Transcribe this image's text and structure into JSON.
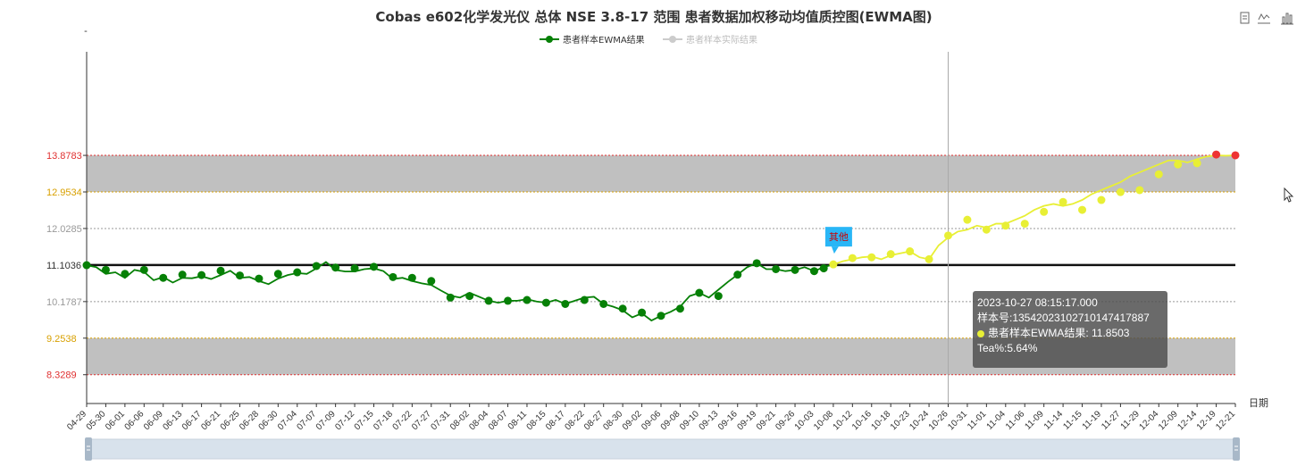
{
  "chart_data": {
    "type": "line",
    "title": "Cobas e602化学发光仪 总体 NSE 3.8-17 范围 患者数据加权移动均值质控图(EWMA图)",
    "legend": [
      {
        "name": "患者样本EWMA结果",
        "color": "#068006"
      },
      {
        "name": "患者样本实际结果",
        "color": "#cccccc"
      }
    ],
    "legend_position": "top-center",
    "xlabel": "日期",
    "ylim": [
      7.6,
      16.5
    ],
    "y_axis_top_label": "-",
    "y_ticks": [
      {
        "value": 13.8783,
        "label": "13.8783",
        "color": "#e03030"
      },
      {
        "value": 12.9534,
        "label": "12.9534",
        "color": "#d8a000"
      },
      {
        "value": 12.0285,
        "label": "12.0285",
        "color": "#999999"
      },
      {
        "value": 11.1036,
        "label": "11.1036",
        "color": "#333333"
      },
      {
        "value": 10.1787,
        "label": "10.1787",
        "color": "#999999"
      },
      {
        "value": 9.2538,
        "label": "9.2538",
        "color": "#d8a000"
      },
      {
        "value": 8.3289,
        "label": "8.3289",
        "color": "#e03030"
      }
    ],
    "mean_line": 11.1036,
    "bands": [
      {
        "from": 12.9534,
        "to": 13.8783,
        "color": "#c0c0c0"
      },
      {
        "from": 8.3289,
        "to": 9.2538,
        "color": "#c0c0c0"
      }
    ],
    "categories": [
      "04-29",
      "05-30",
      "06-01",
      "06-06",
      "06-09",
      "06-13",
      "06-17",
      "06-21",
      "06-25",
      "06-28",
      "06-30",
      "07-04",
      "07-07",
      "07-09",
      "07-12",
      "07-15",
      "07-18",
      "07-22",
      "07-27",
      "07-31",
      "08-02",
      "08-04",
      "08-07",
      "08-11",
      "08-15",
      "08-17",
      "08-22",
      "08-27",
      "08-30",
      "09-02",
      "09-06",
      "09-08",
      "09-10",
      "09-13",
      "09-16",
      "09-19",
      "09-21",
      "09-26",
      "10-03",
      "10-08",
      "10-12",
      "10-16",
      "10-18",
      "10-23",
      "10-24",
      "10-26",
      "10-31",
      "11-01",
      "11-04",
      "11-06",
      "11-09",
      "11-14",
      "11-15",
      "11-19",
      "11-27",
      "11-29",
      "12-04",
      "12-09",
      "12-14",
      "12-19",
      "12-21"
    ],
    "series": [
      {
        "name": "患者样本EWMA结果",
        "x": [
          0,
          0.5,
          1,
          1.5,
          2,
          2.5,
          3,
          3.5,
          4,
          4.5,
          5,
          5.5,
          6,
          6.5,
          7,
          7.5,
          8,
          8.5,
          9,
          9.5,
          10,
          10.5,
          11,
          11.5,
          12,
          12.5,
          13,
          13.5,
          14,
          14.5,
          15,
          15.5,
          16,
          16.5,
          17,
          17.5,
          18,
          18.5,
          19,
          19.5,
          20,
          20.5,
          21,
          21.5,
          22,
          22.5,
          23,
          23.5,
          24,
          24.5,
          25,
          25.5,
          26,
          26.5,
          27,
          27.5,
          28,
          28.5,
          29,
          29.5,
          30,
          30.5,
          31,
          31.5,
          32,
          32.5,
          33,
          33.5,
          34,
          34.5,
          35,
          35.5,
          36,
          36.5,
          37,
          37.5,
          38,
          38.5,
          39,
          39.5,
          40,
          40.5,
          41,
          41.5,
          42,
          42.5,
          43,
          43.5,
          44,
          44.5,
          45,
          45.5,
          46,
          46.5,
          47,
          47.5,
          48,
          48.5,
          49,
          49.5,
          50,
          50.5,
          51,
          51.5,
          52,
          52.5,
          53,
          53.5,
          54,
          54.5,
          55,
          55.5,
          56,
          56.5,
          57,
          57.5,
          58,
          58.5,
          59,
          59.5,
          60
        ],
        "values": [
          11.1,
          11.05,
          10.88,
          10.92,
          10.78,
          10.98,
          10.93,
          10.72,
          10.8,
          10.66,
          10.78,
          10.77,
          10.82,
          10.75,
          10.85,
          10.96,
          10.78,
          10.8,
          10.7,
          10.62,
          10.76,
          10.85,
          10.9,
          10.88,
          11.02,
          11.18,
          10.98,
          10.94,
          10.94,
          11.0,
          11.02,
          10.95,
          10.75,
          10.78,
          10.7,
          10.64,
          10.6,
          10.46,
          10.33,
          10.28,
          10.4,
          10.3,
          10.2,
          10.15,
          10.2,
          10.2,
          10.24,
          10.18,
          10.15,
          10.22,
          10.12,
          10.2,
          10.28,
          10.3,
          10.12,
          10.05,
          9.96,
          9.78,
          9.88,
          9.7,
          9.82,
          9.92,
          10.05,
          10.32,
          10.4,
          10.28,
          10.48,
          10.68,
          10.86,
          11.05,
          11.15,
          11.0,
          11.0,
          10.95,
          10.98,
          11.05,
          10.95,
          11.05,
          11.12,
          11.2,
          11.25,
          11.3,
          11.32,
          11.25,
          11.35,
          11.4,
          11.45,
          11.3,
          11.25,
          11.6,
          11.8,
          11.95,
          12.0,
          12.1,
          12.05,
          12.15,
          12.15,
          12.25,
          12.35,
          12.5,
          12.6,
          12.65,
          12.6,
          12.65,
          12.75,
          12.9,
          13.0,
          13.1,
          13.2,
          13.35,
          13.45,
          13.55,
          13.65,
          13.75,
          13.75,
          13.7,
          13.78,
          13.85,
          13.88,
          13.87,
          13.88
        ],
        "segment_colors": [
          {
            "from_x": 0,
            "to_x": 39,
            "color": "#068006"
          },
          {
            "from_x": 39,
            "to_x": 58.5,
            "color": "#e8ef35"
          },
          {
            "from_x": 58.5,
            "to_x": 60,
            "color": "#e8ef35"
          }
        ],
        "markers": [
          {
            "x": 0,
            "y": 11.1,
            "color": "#068006"
          },
          {
            "x": 1,
            "y": 10.98,
            "color": "#068006"
          },
          {
            "x": 2,
            "y": 10.88,
            "color": "#068006"
          },
          {
            "x": 3,
            "y": 10.98,
            "color": "#068006"
          },
          {
            "x": 4,
            "y": 10.78,
            "color": "#068006"
          },
          {
            "x": 5,
            "y": 10.86,
            "color": "#068006"
          },
          {
            "x": 6,
            "y": 10.85,
            "color": "#068006"
          },
          {
            "x": 7,
            "y": 10.96,
            "color": "#068006"
          },
          {
            "x": 8,
            "y": 10.84,
            "color": "#068006"
          },
          {
            "x": 9,
            "y": 10.76,
            "color": "#068006"
          },
          {
            "x": 10,
            "y": 10.88,
            "color": "#068006"
          },
          {
            "x": 11,
            "y": 10.92,
            "color": "#068006"
          },
          {
            "x": 12,
            "y": 11.08,
            "color": "#068006"
          },
          {
            "x": 13,
            "y": 11.04,
            "color": "#068006"
          },
          {
            "x": 14,
            "y": 11.02,
            "color": "#068006"
          },
          {
            "x": 15,
            "y": 11.06,
            "color": "#068006"
          },
          {
            "x": 16,
            "y": 10.8,
            "color": "#068006"
          },
          {
            "x": 17,
            "y": 10.78,
            "color": "#068006"
          },
          {
            "x": 18,
            "y": 10.7,
            "color": "#068006"
          },
          {
            "x": 19,
            "y": 10.28,
            "color": "#068006"
          },
          {
            "x": 20,
            "y": 10.32,
            "color": "#068006"
          },
          {
            "x": 21,
            "y": 10.2,
            "color": "#068006"
          },
          {
            "x": 22,
            "y": 10.2,
            "color": "#068006"
          },
          {
            "x": 23,
            "y": 10.22,
            "color": "#068006"
          },
          {
            "x": 24,
            "y": 10.15,
            "color": "#068006"
          },
          {
            "x": 25,
            "y": 10.12,
            "color": "#068006"
          },
          {
            "x": 26,
            "y": 10.22,
            "color": "#068006"
          },
          {
            "x": 27,
            "y": 10.12,
            "color": "#068006"
          },
          {
            "x": 28,
            "y": 10.0,
            "color": "#068006"
          },
          {
            "x": 29,
            "y": 9.9,
            "color": "#068006"
          },
          {
            "x": 30,
            "y": 9.82,
            "color": "#068006"
          },
          {
            "x": 31,
            "y": 10.0,
            "color": "#068006"
          },
          {
            "x": 32,
            "y": 10.4,
            "color": "#068006"
          },
          {
            "x": 33,
            "y": 10.32,
            "color": "#068006"
          },
          {
            "x": 34,
            "y": 10.86,
            "color": "#068006"
          },
          {
            "x": 35,
            "y": 11.15,
            "color": "#068006"
          },
          {
            "x": 36,
            "y": 11.0,
            "color": "#068006"
          },
          {
            "x": 37,
            "y": 10.98,
            "color": "#068006"
          },
          {
            "x": 38,
            "y": 10.95,
            "color": "#068006"
          },
          {
            "x": 38.5,
            "y": 11.02,
            "color": "#068006"
          },
          {
            "x": 39,
            "y": 11.12,
            "color": "#e8ef35"
          },
          {
            "x": 40,
            "y": 11.28,
            "color": "#e8ef35"
          },
          {
            "x": 41,
            "y": 11.3,
            "color": "#e8ef35"
          },
          {
            "x": 42,
            "y": 11.38,
            "color": "#e8ef35"
          },
          {
            "x": 43,
            "y": 11.45,
            "color": "#e8ef35"
          },
          {
            "x": 44,
            "y": 11.25,
            "color": "#e8ef35"
          },
          {
            "x": 45,
            "y": 11.85,
            "color": "#e8ef35"
          },
          {
            "x": 46,
            "y": 12.25,
            "color": "#e8ef35"
          },
          {
            "x": 47,
            "y": 12.0,
            "color": "#e8ef35"
          },
          {
            "x": 48,
            "y": 12.1,
            "color": "#e8ef35"
          },
          {
            "x": 49,
            "y": 12.15,
            "color": "#e8ef35"
          },
          {
            "x": 50,
            "y": 12.45,
            "color": "#e8ef35"
          },
          {
            "x": 51,
            "y": 12.7,
            "color": "#e8ef35"
          },
          {
            "x": 52,
            "y": 12.5,
            "color": "#e8ef35"
          },
          {
            "x": 53,
            "y": 12.75,
            "color": "#e8ef35"
          },
          {
            "x": 54,
            "y": 12.95,
            "color": "#e8ef35"
          },
          {
            "x": 55,
            "y": 13.0,
            "color": "#e8ef35"
          },
          {
            "x": 56,
            "y": 13.4,
            "color": "#e8ef35"
          },
          {
            "x": 57,
            "y": 13.65,
            "color": "#e8ef35"
          },
          {
            "x": 58,
            "y": 13.68,
            "color": "#e8ef35"
          },
          {
            "x": 59,
            "y": 13.9,
            "color": "#ee3333"
          },
          {
            "x": 60,
            "y": 13.88,
            "color": "#ee3333"
          }
        ]
      }
    ],
    "annotation": {
      "text": "其他",
      "x": 39,
      "y": 11.12,
      "color": "#29b6f6"
    },
    "hover_cursor_x": 45,
    "grid": false
  },
  "tooltip": {
    "datetime": "2023-10-27 08:15:17.000",
    "sample_no": "样本号:13542023102710147417887",
    "series_label": "患者样本EWMA结果: 11.8503",
    "tea": "Tea%:5.64%"
  },
  "toolbox": {
    "icons": [
      "data-view-icon",
      "line-chart-icon",
      "bar-chart-icon"
    ]
  }
}
